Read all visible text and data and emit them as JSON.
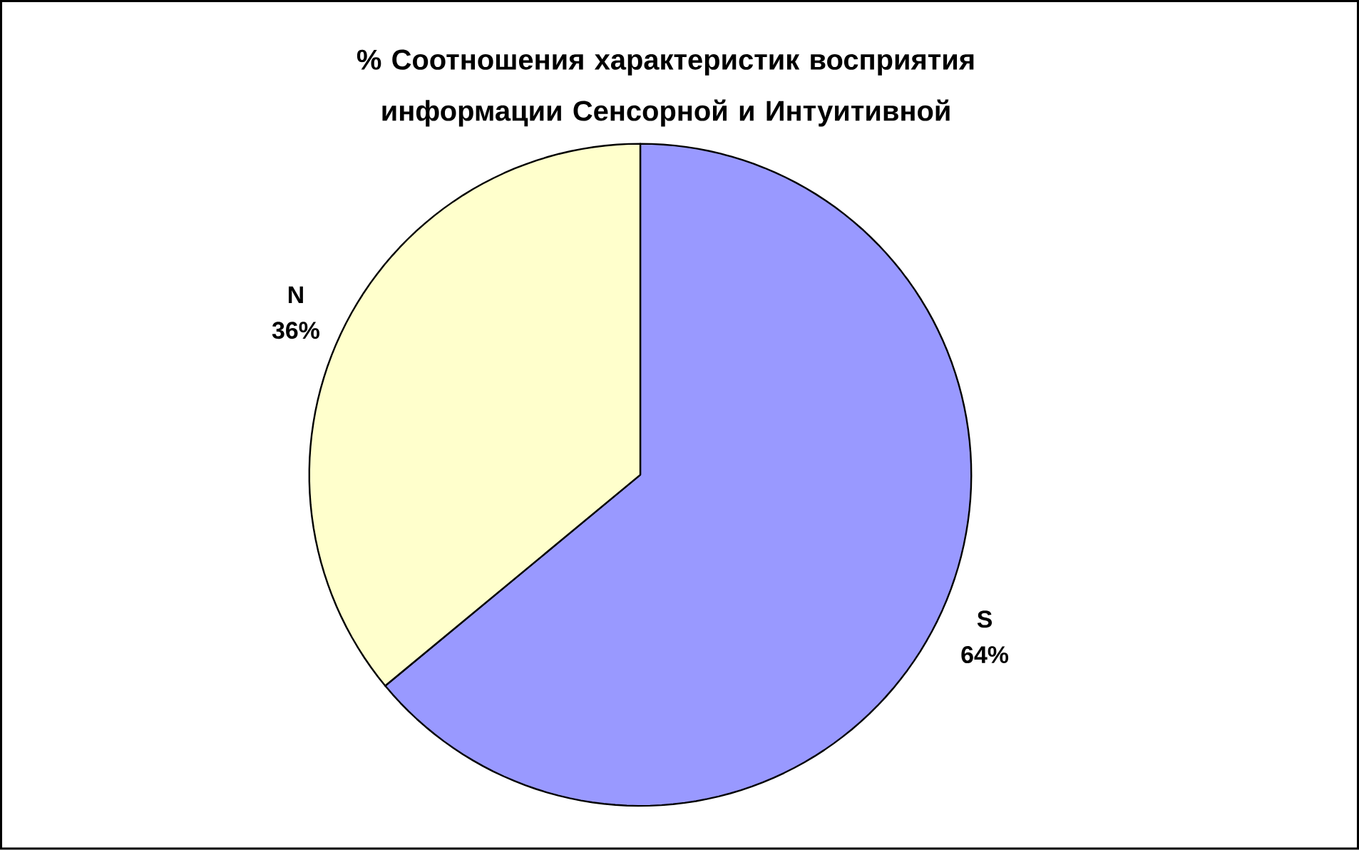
{
  "chart_data": {
    "type": "pie",
    "title": "% Соотношения характеристик восприятия информации Сенсорной и Интуитивной",
    "categories": [
      "S",
      "N"
    ],
    "values": [
      64,
      36
    ],
    "value_labels": [
      "64%",
      "36%"
    ],
    "colors": [
      "#9999ff",
      "#ffffcc"
    ]
  }
}
